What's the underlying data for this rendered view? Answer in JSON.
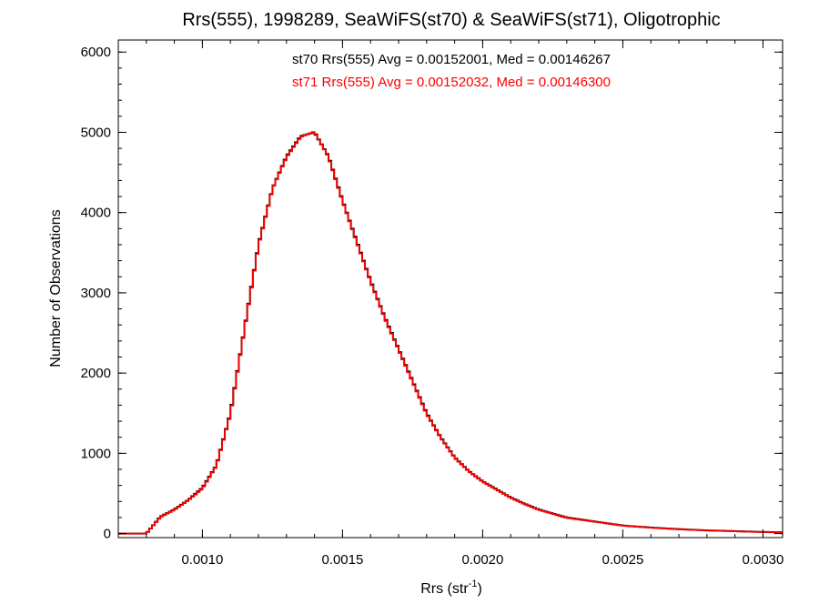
{
  "chart_data": {
    "type": "histogram-step",
    "title": "Rrs(555), 1998289, SeaWiFS(st70) & SeaWiFS(st71), Oligotrophic",
    "xlabel": "Rrs (str",
    "xlabel_superscript": "-1",
    "xlabel_suffix": ")",
    "ylabel": "Number of Observations",
    "xlim": [
      0.0007,
      0.00307
    ],
    "ylim": [
      -50,
      6150
    ],
    "x_tick_values": [
      0.001,
      0.0015,
      0.002,
      0.0025,
      0.003
    ],
    "x_tick_labels": [
      "0.0010",
      "0.0015",
      "0.0020",
      "0.0025",
      "0.0030"
    ],
    "y_tick_values": [
      0,
      1000,
      2000,
      3000,
      4000,
      5000,
      6000
    ],
    "y_tick_labels": [
      "0",
      "1000",
      "2000",
      "3000",
      "4000",
      "5000",
      "6000"
    ],
    "grid": false,
    "bin_width": 1e-05,
    "annotations": [
      {
        "text": "st70 Rrs(555) Avg = 0.00152001, Med = 0.00146267",
        "color": "#000000"
      },
      {
        "text": "st71 Rrs(555) Avg = 0.00152032, Med = 0.00146300",
        "color": "#ff0000"
      }
    ],
    "series": [
      {
        "color": "#000000",
        "x": [
          0.0007,
          0.00075,
          0.0008,
          0.00085,
          0.0009,
          0.00095,
          0.001,
          0.00105,
          0.0011,
          0.00115,
          0.0012,
          0.00125,
          0.0013,
          0.00135,
          0.0014,
          0.00145,
          0.0015,
          0.00155,
          0.0016,
          0.00165,
          0.0017,
          0.00175,
          0.0018,
          0.00185,
          0.0019,
          0.00195,
          0.002,
          0.00205,
          0.0021,
          0.00215,
          0.0022,
          0.00225,
          0.0023,
          0.0024,
          0.0025,
          0.0026,
          0.0027,
          0.0028,
          0.0029,
          0.003,
          0.00307
        ],
        "values": [
          0,
          0,
          0,
          210,
          300,
          420,
          570,
          850,
          1500,
          2550,
          3600,
          4300,
          4700,
          4950,
          5000,
          4700,
          4150,
          3650,
          3150,
          2700,
          2300,
          1900,
          1500,
          1200,
          950,
          780,
          650,
          550,
          450,
          370,
          300,
          250,
          200,
          150,
          100,
          75,
          55,
          40,
          30,
          20,
          15
        ]
      },
      {
        "color": "#ff0000",
        "x": [
          0.0007,
          0.00075,
          0.0008,
          0.00085,
          0.0009,
          0.00095,
          0.001,
          0.00105,
          0.0011,
          0.00115,
          0.0012,
          0.00125,
          0.0013,
          0.00135,
          0.0014,
          0.00145,
          0.0015,
          0.00155,
          0.0016,
          0.00165,
          0.0017,
          0.00175,
          0.0018,
          0.00185,
          0.0019,
          0.00195,
          0.002,
          0.00205,
          0.0021,
          0.00215,
          0.0022,
          0.00225,
          0.0023,
          0.0024,
          0.0025,
          0.0026,
          0.0027,
          0.0028,
          0.0029,
          0.003,
          0.00307
        ],
        "values": [
          0,
          0,
          0,
          205,
          295,
          415,
          560,
          845,
          1490,
          2540,
          3590,
          4295,
          4690,
          4940,
          5010,
          4690,
          4140,
          3640,
          3140,
          2690,
          2290,
          1890,
          1490,
          1195,
          945,
          775,
          645,
          545,
          445,
          365,
          295,
          245,
          195,
          148,
          98,
          73,
          53,
          38,
          28,
          18,
          14
        ]
      }
    ]
  }
}
